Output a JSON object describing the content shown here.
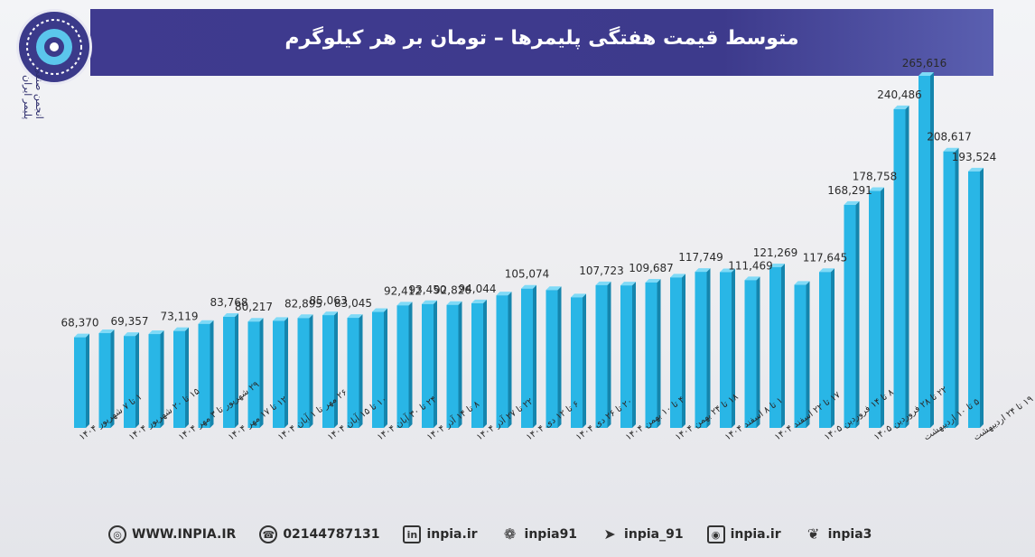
{
  "header": {
    "title": "متوسط قیمت هفتگی پلیمرها – تومان بر هر کیلوگرم"
  },
  "logo": {
    "icon": "association-logo-icon",
    "script_text": "انجمن صنفی پلیمر ایران"
  },
  "colors": {
    "header_bg": "#3d3a8c",
    "bar": "#29b6e6",
    "bar_side": "#1585ad",
    "bar_top": "#7fdaf7"
  },
  "chart_data": {
    "type": "bar",
    "title": "متوسط قیمت هفتگی پلیمرها – تومان بر هر کیلوگرم",
    "ylabel": "",
    "xlabel": "",
    "grid": false,
    "legend": "none",
    "ylim": [
      0,
      270000
    ],
    "categories": [
      "۱ تا ۷ شهریور ۱۴۰۴",
      "",
      "۱۵ تا ۲۰ شهریور ۱۴۰۴",
      "",
      "۲۹ شهریور تا ۳ مهر ۱۴۰۴",
      "",
      "۱۲ تا ۱۷ مهر ۱۴۰۴",
      "",
      "۲۶ مهر تا ۱ آبان ۱۴۰۴",
      "",
      "۱۰ تا ۱۵ آبان ۱۴۰۴",
      "",
      "۲۴ تا ۳۰ آبان ۱۴۰۴",
      "",
      "۸ تا ۱۴ آذر ۱۴۰۴",
      "",
      "۲۲ تا ۲۷ آذر ۱۴۰۴",
      "",
      "۶ تا ۱۲ دی ۱۴۰۴",
      "",
      "۲۰ تا ۲۶ دی ۱۴۰۴",
      "",
      "۴ تا ۱۰ بهمن ۱۴۰۴",
      "",
      "۱۸ تا ۲۴ بهمن ۱۴۰۴",
      "",
      "۱ تا ۸ اسفند ۱۴۰۴",
      "",
      "۱۷ تا ۲۲ اسفند ۱۴۰۴",
      "",
      "۸ تا ۱۴ فروردین ۱۴۰۵",
      "",
      "۲۲ تا ۲۸ فروردین ۱۴۰۵",
      "",
      "۵ تا ۱۰ اردیبهشت",
      "",
      "۱۹ تا ۲۴ اردیبهشت"
    ],
    "values": [
      68370,
      71500,
      69357,
      70800,
      73119,
      78500,
      83768,
      80217,
      80800,
      82895,
      85063,
      83045,
      87500,
      92412,
      93450,
      92826,
      94044,
      100000,
      105074,
      104000,
      98500,
      107723,
      107500,
      109687,
      113500,
      117749,
      117500,
      111469,
      121269,
      108000,
      117645,
      168291,
      178758,
      240486,
      265616,
      208617,
      193524
    ],
    "value_labels": [
      "68,370",
      "",
      "69,357",
      "",
      "73,119",
      "",
      "83,768",
      "80,217",
      "",
      "82,895",
      "85,063",
      "83,045",
      "",
      "92,412",
      "93,450",
      "92,826",
      "94,044",
      "",
      "105,074",
      "",
      "",
      "107,723",
      "",
      "109,687",
      "",
      "117,749",
      "",
      "111,469",
      "121,269",
      "",
      "117,645",
      "168,291",
      "178,758",
      "240,486",
      "265,616",
      "208,617",
      "193,524"
    ]
  },
  "footer": {
    "website": "WWW.INPIA.IR",
    "website_icon": "globe-icon",
    "phone": "02144787131",
    "phone_icon": "phone-icon",
    "linkedin": "inpia.ir",
    "linkedin_icon": "linkedin-icon",
    "linkedin_glyph": "in",
    "aparat": "inpia91",
    "aparat_icon": "aparat-icon",
    "telegram": "inpia_91",
    "telegram_icon": "telegram-icon",
    "instagram": "inpia.ir",
    "instagram_icon": "instagram-icon",
    "twitter": "inpia3",
    "twitter_icon": "twitter-icon"
  }
}
